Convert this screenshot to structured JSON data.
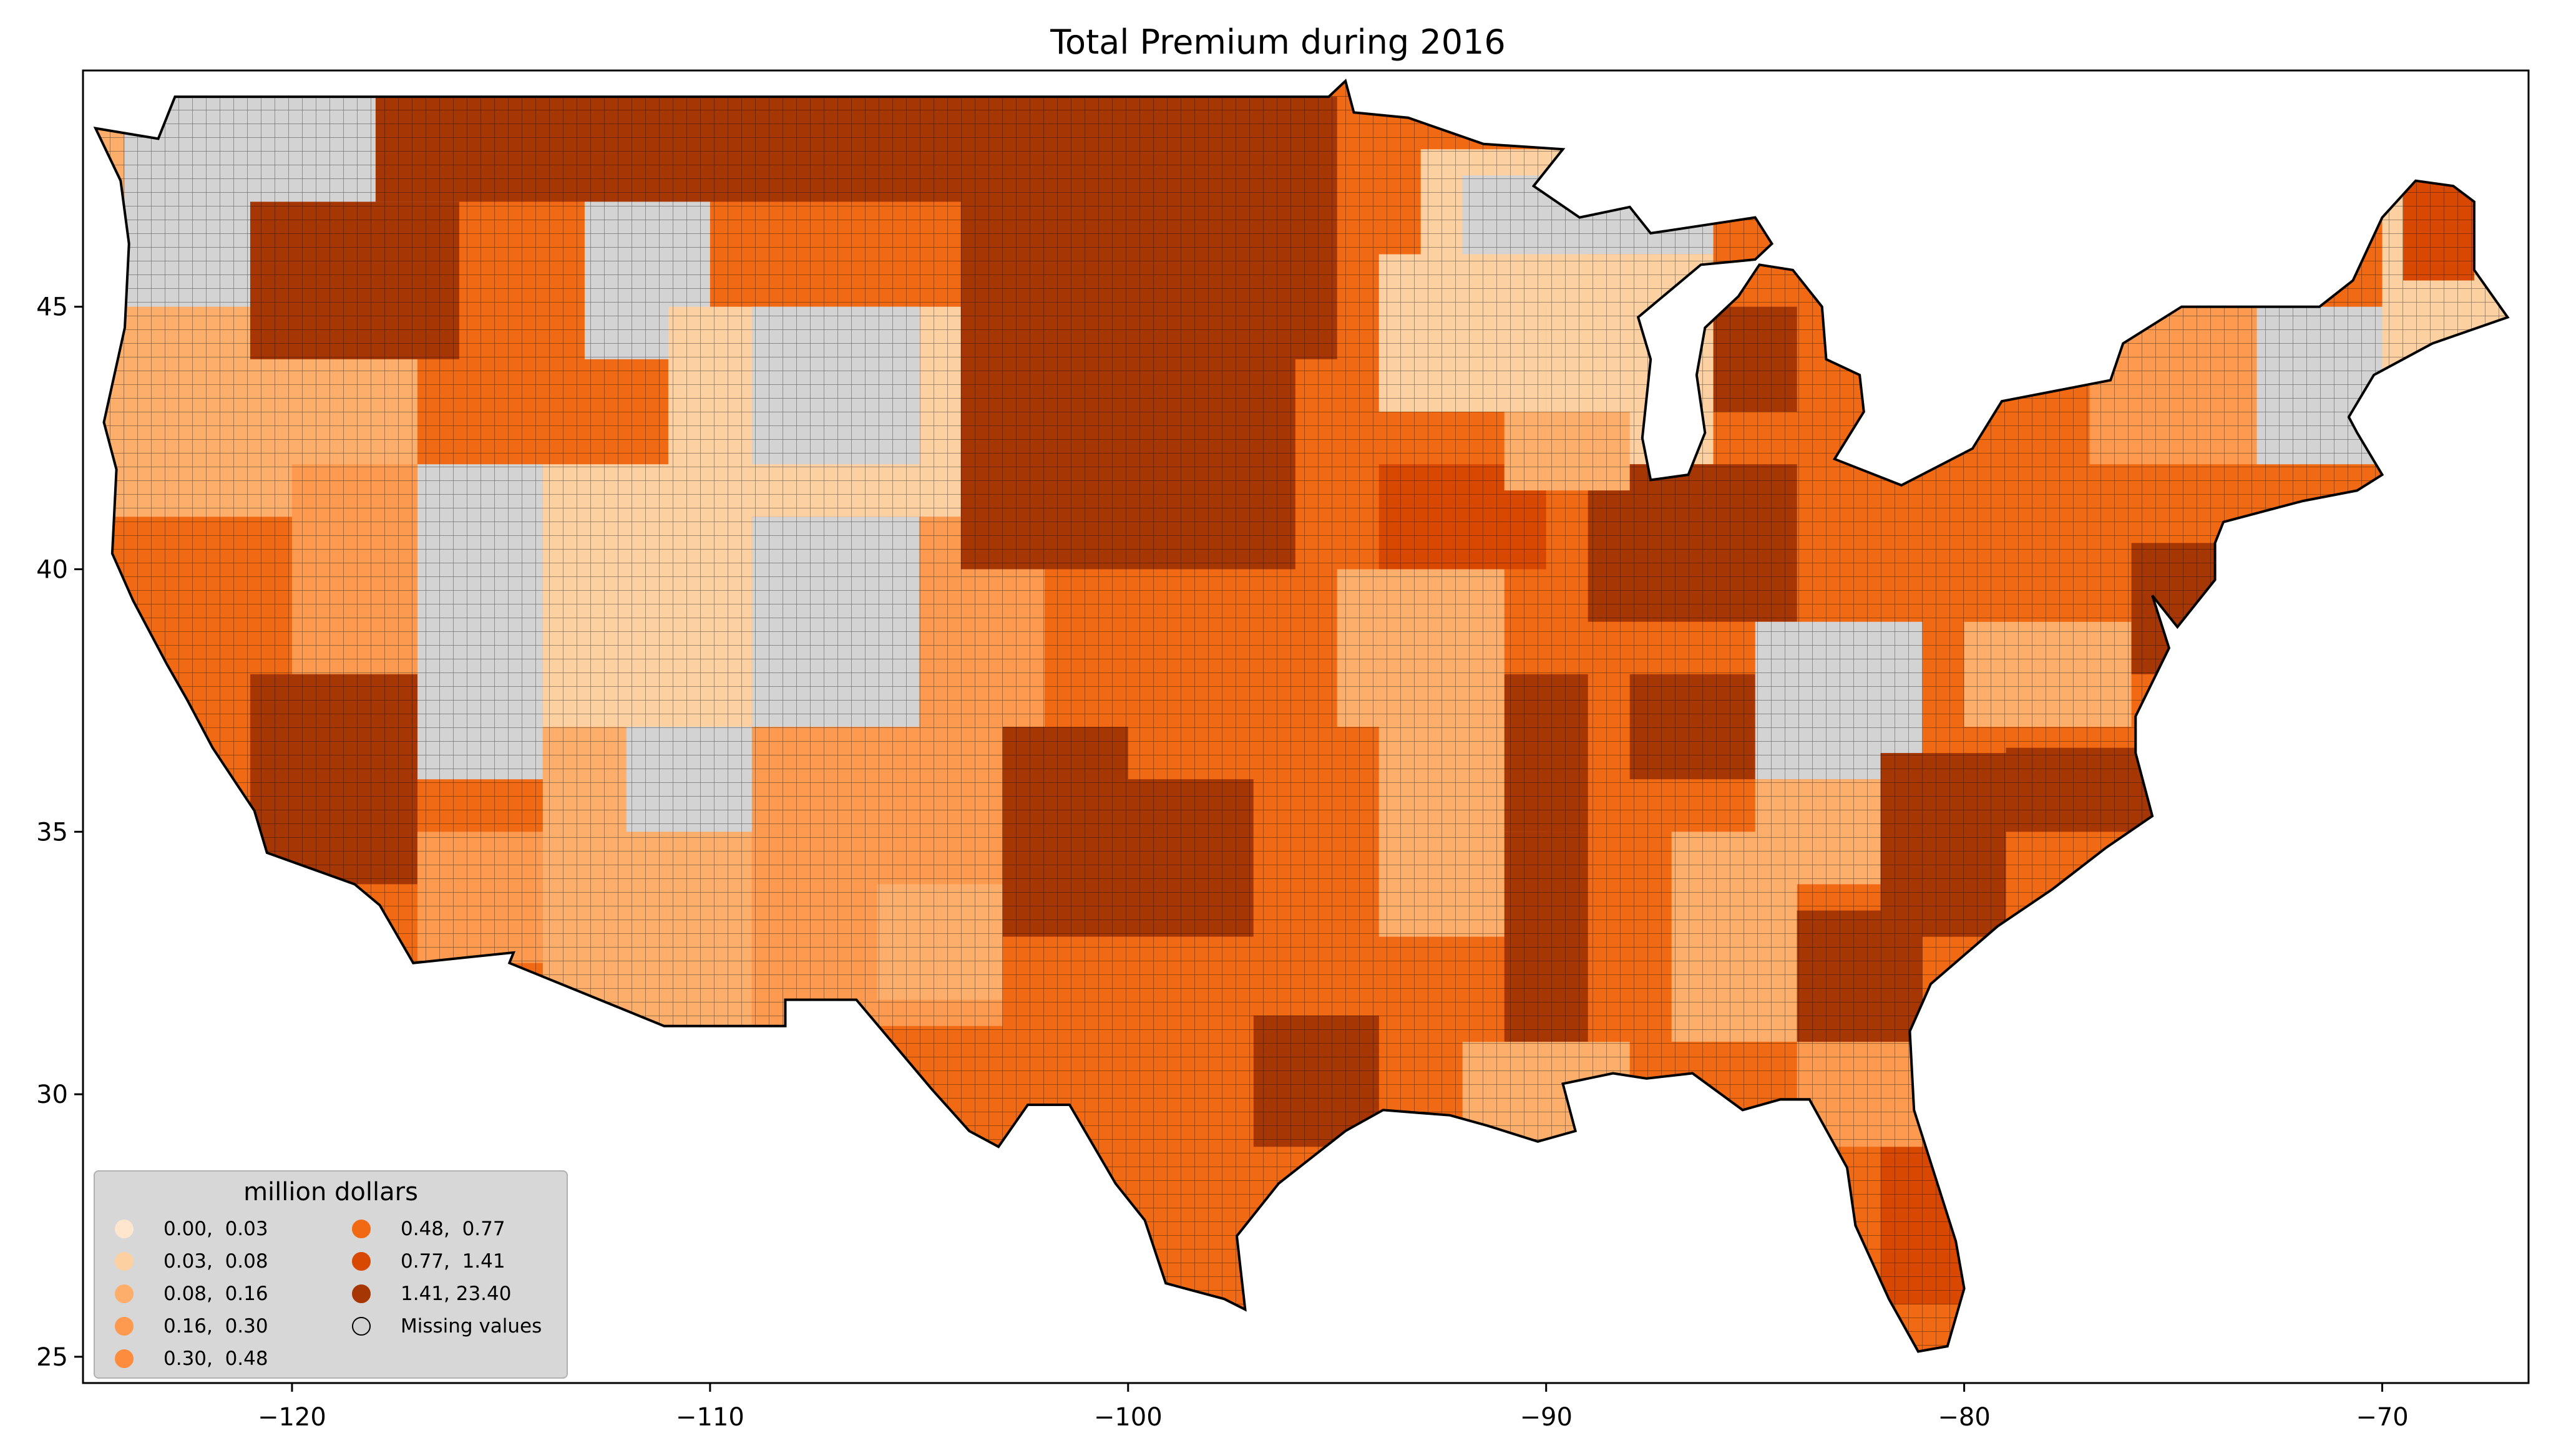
{
  "chart_data": {
    "type": "choropleth map",
    "title": "Total  Premium during 2016",
    "xlim": [
      -125,
      -66.5
    ],
    "ylim": [
      24.5,
      49.5
    ],
    "x_ticks": [
      -120,
      -110,
      -100,
      -90,
      -80,
      -70
    ],
    "y_ticks": [
      25,
      30,
      35,
      40,
      45
    ],
    "x_tick_labels": [
      "−120",
      "−110",
      "−100",
      "−90",
      "−80",
      "−70"
    ],
    "y_tick_labels": [
      "25",
      "30",
      "35",
      "40",
      "45"
    ],
    "legend": {
      "title": "million dollars",
      "placement": "lower left",
      "bins": [
        {
          "label": "0.00,  0.03",
          "color": "#fee6ce"
        },
        {
          "label": "0.03,  0.08",
          "color": "#fdd0a2"
        },
        {
          "label": "0.08,  0.16",
          "color": "#fdae6b"
        },
        {
          "label": "0.16,  0.30",
          "color": "#fd9a4f"
        },
        {
          "label": "0.30,  0.48",
          "color": "#fd8d3c"
        },
        {
          "label": "0.48,  0.77",
          "color": "#f16913"
        },
        {
          "label": "0.77,  1.41",
          "color": "#d94801"
        },
        {
          "label": "1.41, 23.40",
          "color": "#a63603"
        },
        {
          "label": "Missing values",
          "color": "#d3d3d3"
        }
      ]
    },
    "missing_color": "#d3d3d3",
    "outline_color": "#000000"
  }
}
